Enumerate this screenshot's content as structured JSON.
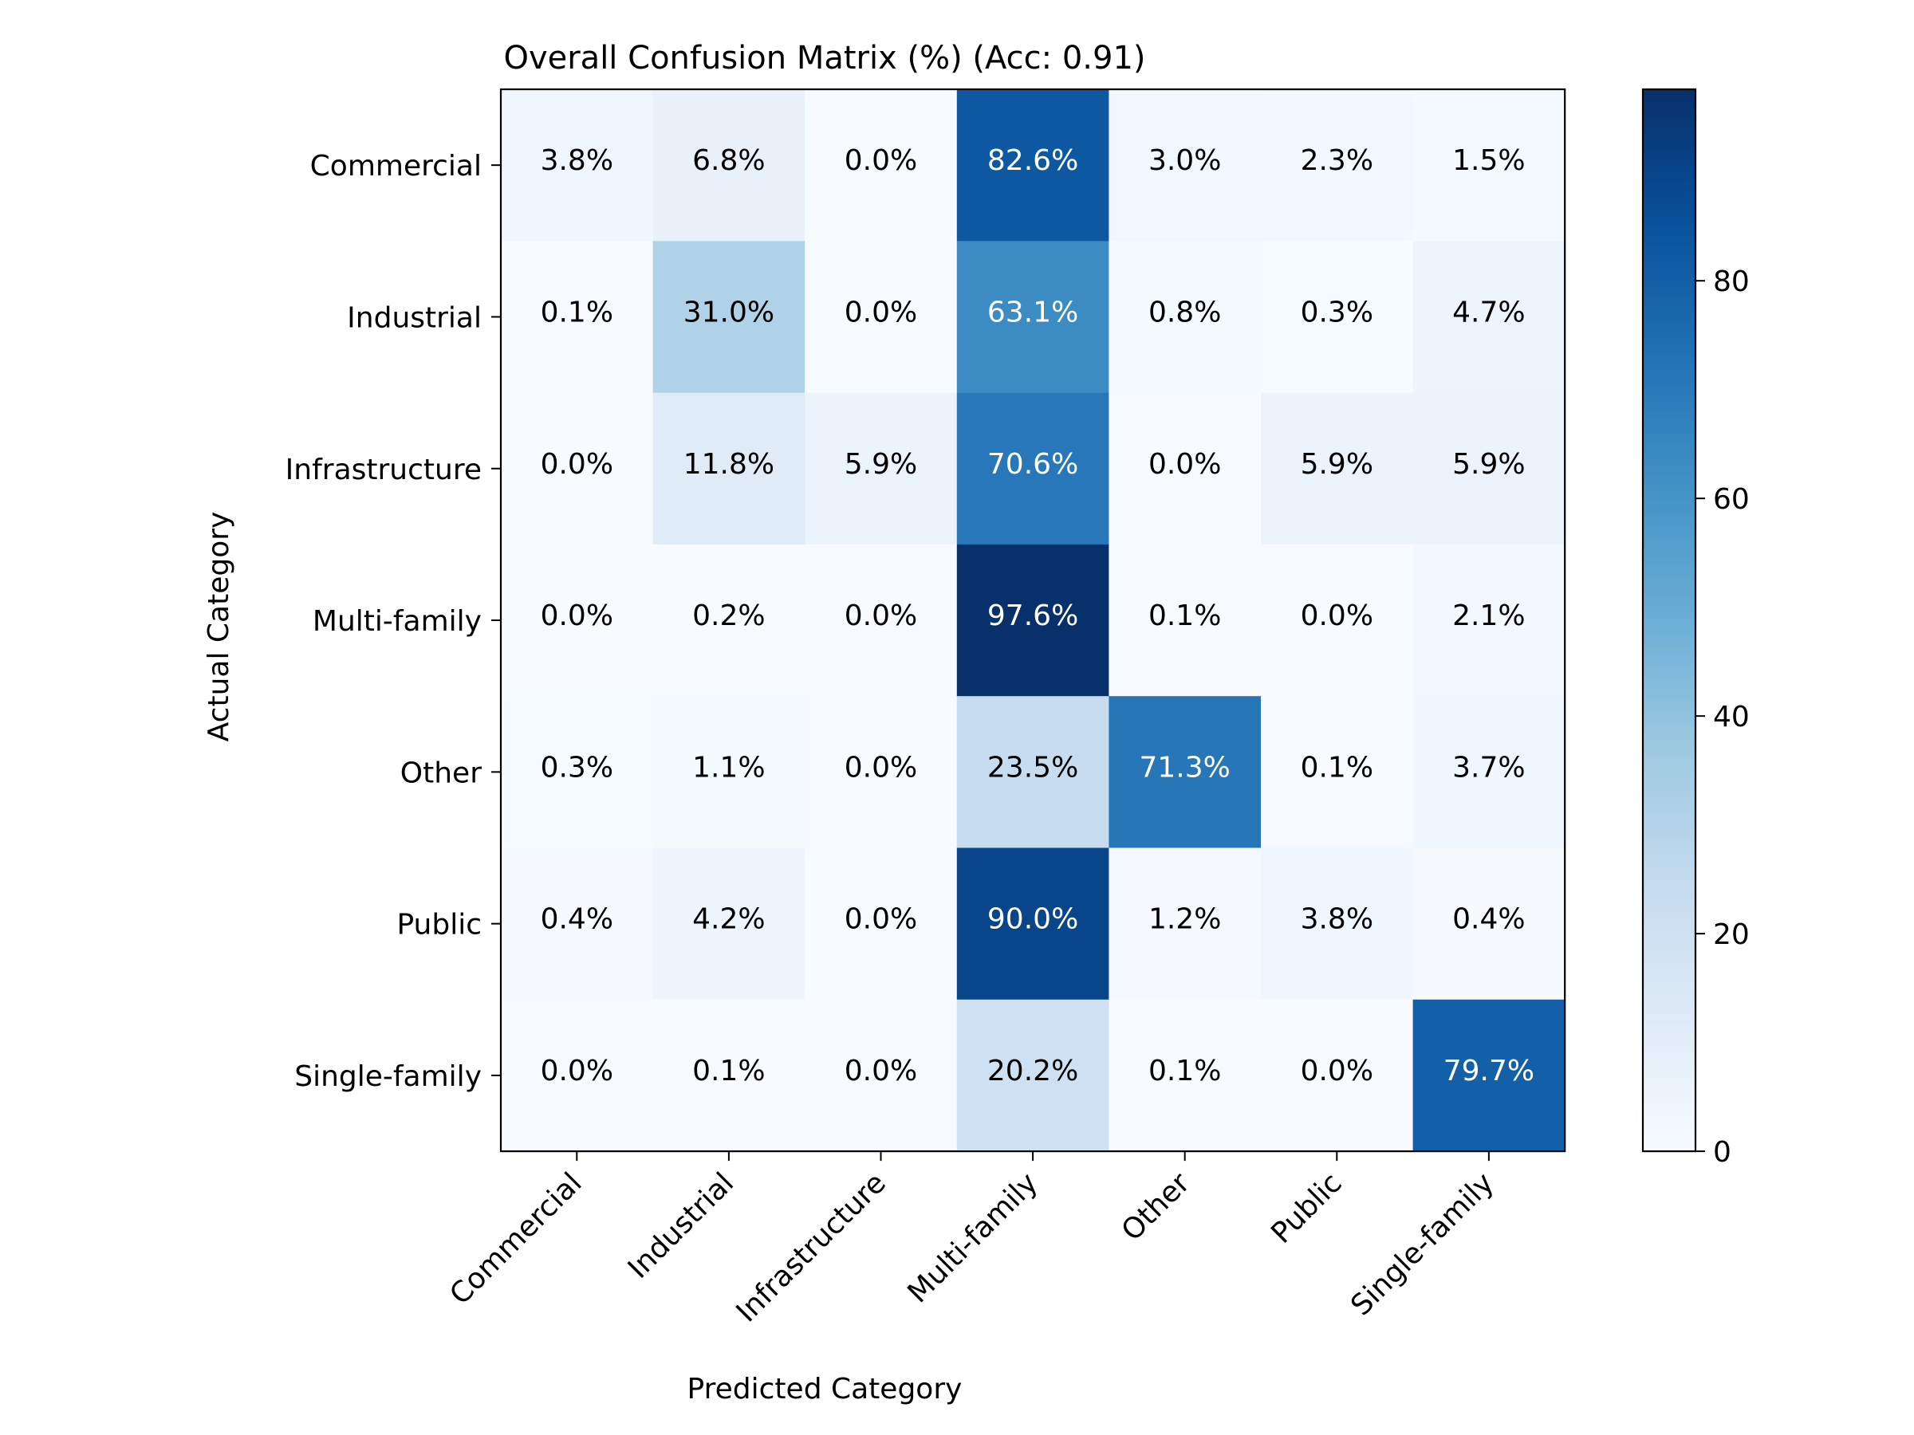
{
  "chart_data": {
    "type": "heatmap",
    "title": "Overall Confusion Matrix (%) (Acc: 0.91)",
    "xlabel": "Predicted Category",
    "ylabel": "Actual Category",
    "x_categories": [
      "Commercial",
      "Industrial",
      "Infrastructure",
      "Multi-family",
      "Other",
      "Public",
      "Single-family"
    ],
    "y_categories": [
      "Commercial",
      "Industrial",
      "Infrastructure",
      "Multi-family",
      "Other",
      "Public",
      "Single-family"
    ],
    "values": [
      [
        3.8,
        6.8,
        0.0,
        82.6,
        3.0,
        2.3,
        1.5
      ],
      [
        0.1,
        31.0,
        0.0,
        63.1,
        0.8,
        0.3,
        4.7
      ],
      [
        0.0,
        11.8,
        5.9,
        70.6,
        0.0,
        5.9,
        5.9
      ],
      [
        0.0,
        0.2,
        0.0,
        97.6,
        0.1,
        0.0,
        2.1
      ],
      [
        0.3,
        1.1,
        0.0,
        23.5,
        71.3,
        0.1,
        3.7
      ],
      [
        0.4,
        4.2,
        0.0,
        90.0,
        1.2,
        3.8,
        0.4
      ],
      [
        0.0,
        0.1,
        0.0,
        20.2,
        0.1,
        0.0,
        79.7
      ]
    ],
    "value_format": "{v}%",
    "colormap": "Blues",
    "color_range": [
      0,
      97.6
    ],
    "colorbar_ticks": [
      0,
      20,
      40,
      60,
      80
    ],
    "text_color_threshold": 48.8,
    "text_colors": {
      "light": "#ffffff",
      "dark": "#000000"
    }
  }
}
